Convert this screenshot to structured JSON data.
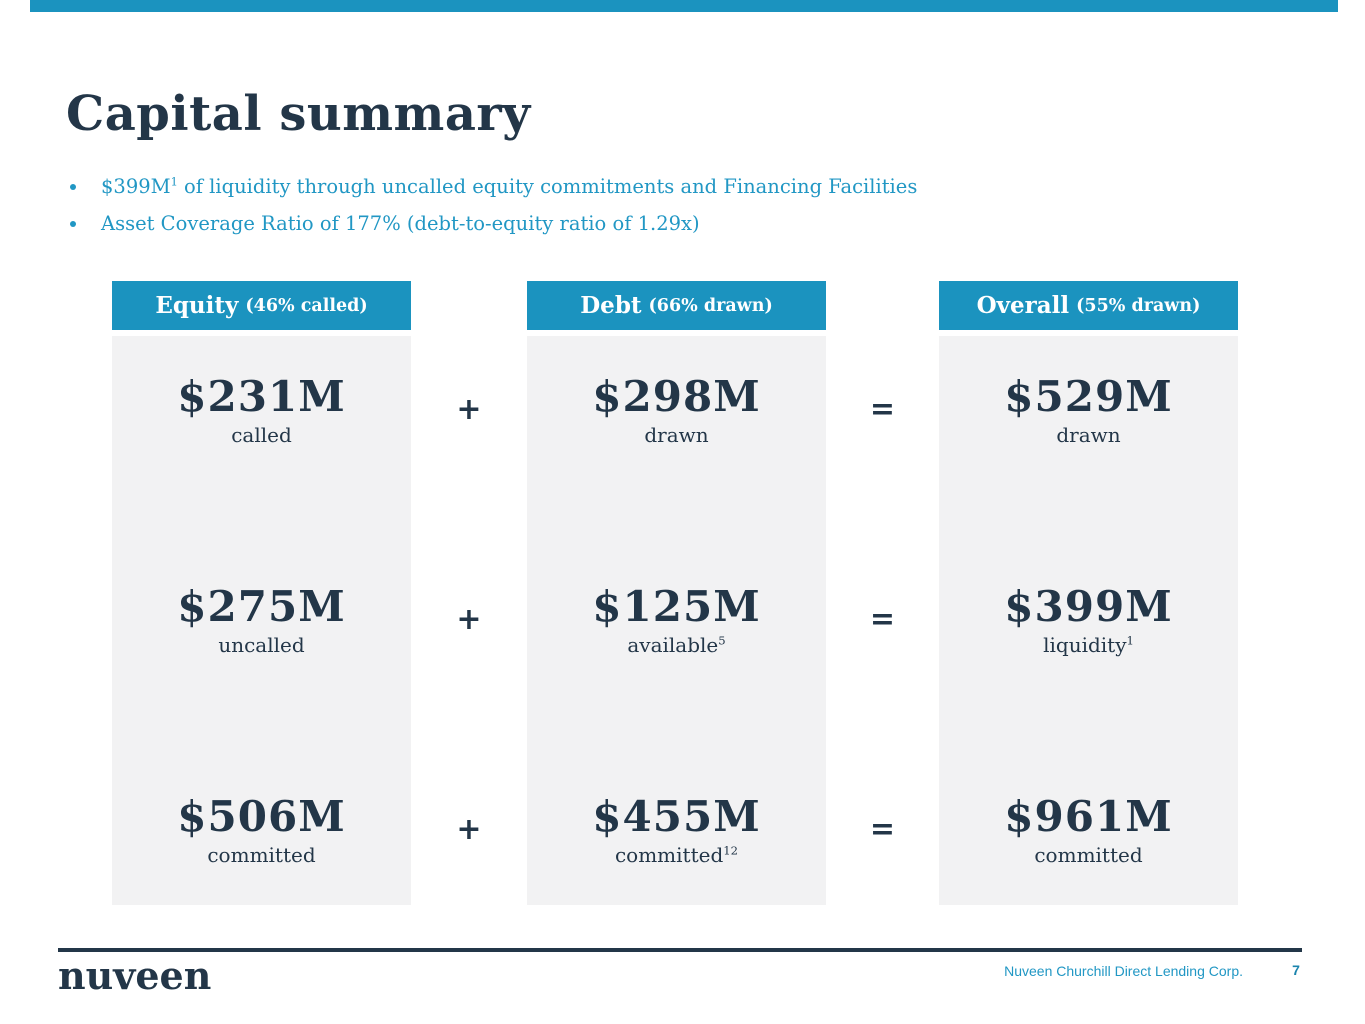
{
  "colors": {
    "teal_header": "#1b93bf",
    "teal_text": "#2197c4",
    "navy": "#233648",
    "panel_grey": "#f2f2f3",
    "page_number_teal": "#1b84ad"
  },
  "title": "Capital summary",
  "bullets": {
    "b1": {
      "prefix": "$399M",
      "sup": "1",
      "rest": " of liquidity through uncalled equity commitments and Financing Facilities"
    },
    "b2": {
      "text": "Asset Coverage Ratio of 177% (debt-to-equity ratio of 1.29x)"
    }
  },
  "columns": [
    {
      "header_name": "Equity",
      "header_note": "(46% called)",
      "rows": [
        {
          "value": "$231M",
          "label": "called",
          "sup": ""
        },
        {
          "value": "$275M",
          "label": "uncalled",
          "sup": ""
        },
        {
          "value": "$506M",
          "label": "committed",
          "sup": ""
        }
      ]
    },
    {
      "header_name": "Debt",
      "header_note": "(66% drawn)",
      "rows": [
        {
          "value": "$298M",
          "label": "drawn",
          "sup": ""
        },
        {
          "value": "$125M",
          "label": "available",
          "sup": "5"
        },
        {
          "value": "$455M",
          "label": "committed",
          "sup": "12"
        }
      ]
    },
    {
      "header_name": "Overall",
      "header_note": "(55% drawn)",
      "rows": [
        {
          "value": "$529M",
          "label": "drawn",
          "sup": ""
        },
        {
          "value": "$399M",
          "label": "liquidity",
          "sup": "1"
        },
        {
          "value": "$961M",
          "label": "committed",
          "sup": ""
        }
      ]
    }
  ],
  "operators": {
    "plus": "+",
    "equals": "="
  },
  "footer": {
    "logo": "nuveen",
    "company": "Nuveen Churchill Direct Lending Corp.",
    "page_number": "7"
  }
}
